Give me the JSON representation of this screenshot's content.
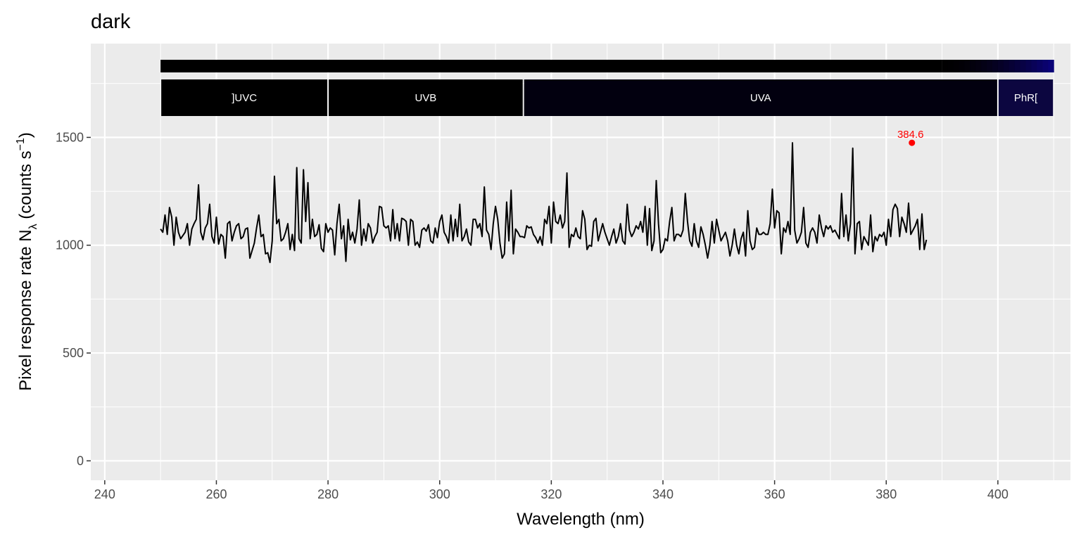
{
  "chart_data": {
    "type": "line",
    "title": "dark",
    "xlabel": "Wavelength (nm)",
    "ylabel": {
      "prefix": "Pixel  response  rate  N",
      "subscript": "λ",
      "suffix": "  (counts  s",
      "superscript": "−1",
      "close": ")"
    },
    "xlim": [
      237.5,
      413
    ],
    "ylim": [
      -90,
      1935
    ],
    "x_ticks": [
      240,
      260,
      280,
      300,
      320,
      340,
      360,
      380,
      400
    ],
    "y_ticks": [
      0,
      500,
      1000,
      1500
    ],
    "grid": true,
    "bands": [
      {
        "label": "]UVC",
        "from": 250,
        "to": 280,
        "color": "#000000"
      },
      {
        "label": "UVB",
        "from": 280,
        "to": 315,
        "color": "#000000"
      },
      {
        "label": "UVA",
        "from": 315,
        "to": 400,
        "color": "#02000f"
      },
      {
        "label": "PhR[",
        "from": 400,
        "to": 410,
        "color": "#0c0640"
      }
    ],
    "color_bar": {
      "from": 250,
      "to": 410,
      "gradient_start": 390
    },
    "peak": {
      "x": 384.6,
      "y": 1475,
      "label": "384.6",
      "color": "#ff0000"
    },
    "series": [
      {
        "color": "#000000",
        "x_start": 250,
        "x_step": 0.4,
        "y": [
          1075,
          1060,
          1140,
          1050,
          1175,
          1130,
          1000,
          1130,
          1060,
          1030,
          1045,
          1060,
          1100,
          1000,
          1075,
          1100,
          1120,
          1280,
          1060,
          1025,
          1080,
          1100,
          1190,
          1040,
          1010,
          1130,
          1005,
          1050,
          1040,
          940,
          1100,
          1110,
          1020,
          1060,
          1090,
          1100,
          1030,
          1040,
          1075,
          1080,
          940,
          975,
          1010,
          1080,
          1140,
          1040,
          1050,
          960,
          965,
          920,
          1020,
          1320,
          1100,
          1120,
          1020,
          1030,
          1060,
          1100,
          980,
          1050,
          975,
          1360,
          1030,
          1010,
          1350,
          1110,
          1290,
          1030,
          1120,
          1040,
          1050,
          1095,
          985,
          970,
          1100,
          1060,
          1080,
          1070,
          955,
          1100,
          1190,
          1030,
          1090,
          925,
          1120,
          1025,
          1060,
          1010,
          1075,
          1210,
          1000,
          1075,
          1020,
          1100,
          1080,
          1010,
          1040,
          1060,
          1180,
          1175,
          1090,
          1080,
          1090,
          1020,
          1165,
          1030,
          1100,
          1020,
          1125,
          1120,
          1110,
          1000,
          1120,
          1110,
          1000,
          1015,
          990,
          1070,
          1080,
          1065,
          1095,
          1020,
          1010,
          1080,
          1035,
          1110,
          1140,
          1060,
          1040,
          1010,
          1140,
          1020,
          1120,
          1040,
          1190,
          1020,
          1040,
          1075,
          1015,
          1000,
          1120,
          1120,
          1080,
          1100,
          1040,
          1270,
          1070,
          1050,
          980,
          1100,
          1180,
          1120,
          1010,
          940,
          960,
          1200,
          1020,
          1255,
          960,
          1075,
          1060,
          1040,
          1040,
          1035,
          1090,
          1080,
          1085,
          1050,
          1035,
          1010,
          1040,
          1000,
          1120,
          1100,
          1180,
          1010,
          1200,
          1110,
          1100,
          1140,
          1080,
          1110,
          1335,
          990,
          1050,
          1040,
          1080,
          1040,
          1030,
          1160,
          1120,
          980,
          1000,
          995,
          1110,
          1125,
          1020,
          1060,
          1100,
          1060,
          1030,
          1000,
          1040,
          1075,
          1010,
          1040,
          1100,
          1020,
          1005,
          1190,
          1070,
          1040,
          1060,
          1090,
          1075,
          1110,
          1060,
          1180,
          1000,
          1170,
          975,
          1020,
          1300,
          1100,
          965,
          980,
          1030,
          1020,
          1110,
          1175,
          1020,
          1050,
          1050,
          1040,
          1070,
          1240,
          1110,
          1020,
          995,
          1100,
          1020,
          990,
          1085,
          1050,
          1000,
          940,
          1000,
          1110,
          1010,
          1120,
          1070,
          1020,
          1040,
          1060,
          1020,
          950,
          1000,
          1075,
          1000,
          960,
          1030,
          1060,
          950,
          1160,
          1020,
          980,
          990,
          1080,
          1050,
          1050,
          1060,
          1050,
          1050,
          1100,
          1260,
          1080,
          1160,
          1150,
          960,
          1080,
          1060,
          1110,
          1050,
          1475,
          1070,
          1010,
          1030,
          1060,
          1175,
          1010,
          990,
          1060,
          1080,
          1060,
          1010,
          1140,
          1080,
          1040,
          1090,
          1075,
          1090,
          1060,
          1070,
          1050,
          1030,
          1240,
          1040,
          1140,
          1020,
          1100,
          1450,
          960,
          1100,
          1110,
          980,
          1040,
          1020,
          1000,
          1140,
          970,
          1040,
          1020,
          1050,
          1040,
          1060,
          1000,
          1120,
          1040,
          1165,
          1190,
          1170,
          1040,
          1130,
          1100,
          1060,
          1195,
          1050,
          1070,
          1090,
          1120,
          980,
          1145,
          980,
          1025
        ]
      }
    ]
  }
}
